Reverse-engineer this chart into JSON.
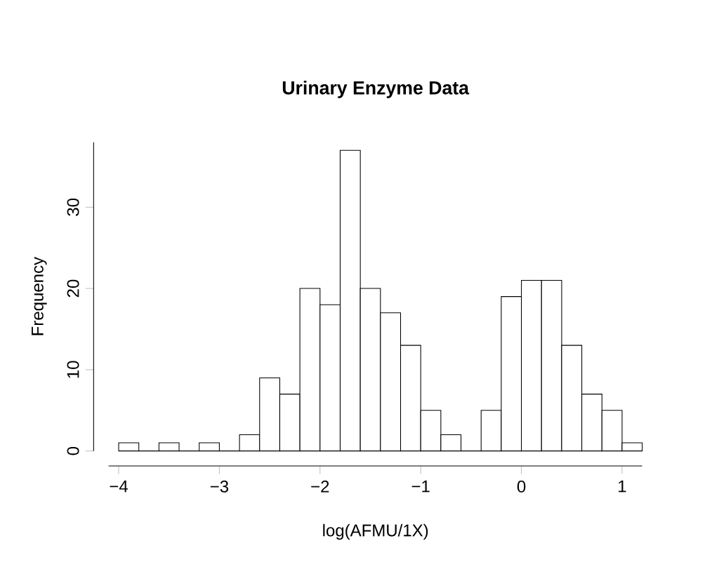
{
  "chart_data": {
    "type": "histogram",
    "title": "Urinary Enzyme Data",
    "xlabel": "log(AFMU/1X)",
    "ylabel": "Frequency",
    "bins": [
      -4.0,
      -3.8,
      -3.6,
      -3.4,
      -3.2,
      -3.0,
      -2.8,
      -2.6,
      -2.4,
      -2.2,
      -2.0,
      -1.8,
      -1.6,
      -1.4,
      -1.2,
      -1.0,
      -0.8,
      -0.6,
      -0.4,
      -0.2,
      0.0,
      0.2,
      0.4,
      0.6,
      0.8,
      1.0,
      1.2
    ],
    "values": [
      1,
      0,
      1,
      0,
      1,
      0,
      2,
      9,
      7,
      20,
      18,
      37,
      20,
      17,
      13,
      5,
      2,
      0,
      5,
      19,
      21,
      21,
      13,
      7,
      5,
      1
    ],
    "color": "#ffffff",
    "xlim": [
      -4.1,
      1.2
    ],
    "ylim": [
      0,
      38
    ],
    "xticks": [
      {
        "value": -4,
        "label": "−4"
      },
      {
        "value": -3,
        "label": "−3"
      },
      {
        "value": -2,
        "label": "−2"
      },
      {
        "value": -1,
        "label": "−1"
      },
      0,
      1
    ],
    "yticks": [
      0,
      10,
      20,
      30
    ]
  }
}
